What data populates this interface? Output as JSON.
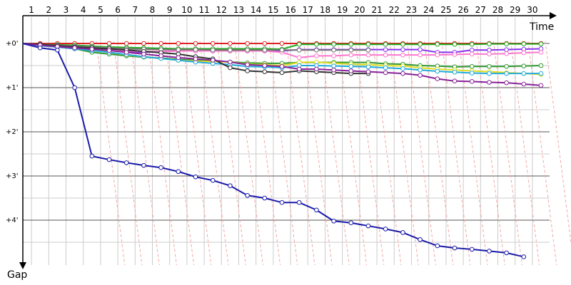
{
  "chart_data": {
    "type": "line",
    "xlabel": "Time",
    "ylabel": "Gap",
    "x_ticks": [
      "1",
      "2",
      "3",
      "4",
      "5",
      "6",
      "7",
      "8",
      "9",
      "10",
      "11",
      "12",
      "13",
      "14",
      "15",
      "16",
      "17",
      "18",
      "19",
      "20",
      "21",
      "22",
      "23",
      "24",
      "25",
      "26",
      "27",
      "28",
      "29",
      "30"
    ],
    "y_ticks": [
      "+0'",
      "+1'",
      "+2'",
      "+3'",
      "+4'"
    ],
    "xlim": [
      0,
      31.5
    ],
    "ylim": [
      -0.3,
      5.3
    ],
    "grid": true,
    "y_inverted": true,
    "colors": {
      "grid": "#cccccc",
      "axis": "#000000",
      "lap_guides": "#f4a6a6"
    },
    "series": [
      {
        "color": "#dd2222",
        "values": [
          [
            0,
            0
          ],
          [
            1,
            0
          ],
          [
            2,
            0
          ],
          [
            3,
            0
          ],
          [
            4,
            0
          ],
          [
            5,
            0
          ],
          [
            6,
            0
          ],
          [
            7,
            0
          ],
          [
            8,
            0
          ],
          [
            9,
            0
          ],
          [
            10,
            0
          ],
          [
            11,
            0
          ],
          [
            12,
            0
          ],
          [
            13,
            0
          ],
          [
            14,
            0
          ],
          [
            15,
            0
          ],
          [
            16,
            0
          ],
          [
            17,
            0
          ],
          [
            18,
            0
          ],
          [
            19,
            0
          ],
          [
            20,
            0
          ],
          [
            21,
            0
          ],
          [
            22,
            0
          ],
          [
            23,
            0
          ],
          [
            24,
            0
          ],
          [
            25,
            0
          ],
          [
            26,
            0
          ],
          [
            27,
            0
          ],
          [
            28,
            0
          ],
          [
            29,
            0
          ],
          [
            30,
            0
          ]
        ]
      },
      {
        "color": "#22aa22",
        "values": [
          [
            0,
            0
          ],
          [
            1,
            0.02
          ],
          [
            2,
            0.03
          ],
          [
            3,
            0.04
          ],
          [
            4,
            0.06
          ],
          [
            5,
            0.08
          ],
          [
            6,
            0.09
          ],
          [
            7,
            0.1
          ],
          [
            8,
            0.11
          ],
          [
            9,
            0.12
          ],
          [
            10,
            0.12
          ],
          [
            11,
            0.12
          ],
          [
            12,
            0.12
          ],
          [
            13,
            0.12
          ],
          [
            14,
            0.12
          ],
          [
            15,
            0.13
          ],
          [
            16,
            0.02
          ],
          [
            17,
            0.02
          ],
          [
            18,
            0.02
          ],
          [
            19,
            0.02
          ],
          [
            20,
            0.02
          ],
          [
            21,
            0.02
          ],
          [
            22,
            0.02
          ],
          [
            23,
            0.02
          ],
          [
            24,
            0.02
          ],
          [
            25,
            0.02
          ],
          [
            26,
            0.02
          ],
          [
            27,
            0.01
          ],
          [
            28,
            0.01
          ],
          [
            29,
            0.01
          ],
          [
            30,
            0.01
          ]
        ]
      },
      {
        "color": "#8833ee",
        "values": [
          [
            0,
            0
          ],
          [
            1,
            0.05
          ],
          [
            2,
            0.08
          ],
          [
            3,
            0.12
          ],
          [
            4,
            0.14
          ],
          [
            5,
            0.16
          ],
          [
            6,
            0.18
          ],
          [
            7,
            0.2
          ],
          [
            8,
            0.18
          ],
          [
            9,
            0.17
          ],
          [
            10,
            0.17
          ],
          [
            11,
            0.17
          ],
          [
            12,
            0.17
          ],
          [
            13,
            0.17
          ],
          [
            14,
            0.17
          ],
          [
            15,
            0.17
          ],
          [
            16,
            0.14
          ],
          [
            17,
            0.14
          ],
          [
            18,
            0.14
          ],
          [
            19,
            0.14
          ],
          [
            20,
            0.14
          ],
          [
            21,
            0.14
          ],
          [
            22,
            0.14
          ],
          [
            23,
            0.14
          ],
          [
            24,
            0.2
          ],
          [
            25,
            0.2
          ],
          [
            26,
            0.15
          ],
          [
            27,
            0.15
          ],
          [
            28,
            0.14
          ],
          [
            29,
            0.13
          ],
          [
            30,
            0.12
          ]
        ]
      },
      {
        "color": "#ff77cc",
        "values": [
          [
            0,
            0
          ],
          [
            1,
            0.05
          ],
          [
            2,
            0.08
          ],
          [
            3,
            0.1
          ],
          [
            4,
            0.12
          ],
          [
            5,
            0.15
          ],
          [
            6,
            0.17
          ],
          [
            7,
            0.18
          ],
          [
            8,
            0.18
          ],
          [
            9,
            0.17
          ],
          [
            10,
            0.17
          ],
          [
            11,
            0.17
          ],
          [
            12,
            0.17
          ],
          [
            13,
            0.17
          ],
          [
            14,
            0.17
          ],
          [
            15,
            0.2
          ],
          [
            16,
            0.32
          ],
          [
            17,
            0.28
          ],
          [
            18,
            0.28
          ],
          [
            19,
            0.26
          ],
          [
            20,
            0.26
          ],
          [
            21,
            0.26
          ],
          [
            22,
            0.26
          ],
          [
            23,
            0.26
          ],
          [
            24,
            0.26
          ],
          [
            25,
            0.25
          ],
          [
            26,
            0.24
          ],
          [
            27,
            0.24
          ],
          [
            28,
            0.23
          ],
          [
            29,
            0.21
          ],
          [
            30,
            0.2
          ]
        ]
      },
      {
        "color": "#777777",
        "values": [
          [
            0,
            0
          ],
          [
            1,
            0.02
          ],
          [
            2,
            0.04
          ],
          [
            3,
            0.06
          ],
          [
            4,
            0.08
          ],
          [
            5,
            0.1
          ],
          [
            6,
            0.12
          ],
          [
            7,
            0.13
          ],
          [
            8,
            0.14
          ],
          [
            9,
            0.14
          ],
          [
            10,
            0.14
          ],
          [
            11,
            0.15
          ],
          [
            12,
            0.15
          ],
          [
            13,
            0.15
          ],
          [
            14,
            0.15
          ],
          [
            15,
            0.15
          ],
          [
            16,
            0.15
          ],
          [
            17,
            0.15
          ],
          [
            18,
            0.15
          ],
          [
            19,
            0.15
          ],
          [
            20,
            0.15
          ]
        ]
      },
      {
        "color": "#339933",
        "values": [
          [
            0,
            0
          ],
          [
            1,
            0.05
          ],
          [
            2,
            0.08
          ],
          [
            3,
            0.12
          ],
          [
            4,
            0.2
          ],
          [
            5,
            0.24
          ],
          [
            6,
            0.28
          ],
          [
            7,
            0.31
          ],
          [
            8,
            0.33
          ],
          [
            9,
            0.36
          ],
          [
            10,
            0.38
          ],
          [
            11,
            0.4
          ],
          [
            12,
            0.42
          ],
          [
            13,
            0.44
          ],
          [
            14,
            0.45
          ],
          [
            15,
            0.45
          ],
          [
            16,
            0.43
          ],
          [
            17,
            0.43
          ],
          [
            18,
            0.43
          ],
          [
            19,
            0.43
          ],
          [
            20,
            0.43
          ],
          [
            21,
            0.46
          ],
          [
            22,
            0.47
          ],
          [
            23,
            0.5
          ],
          [
            24,
            0.51
          ],
          [
            25,
            0.53
          ],
          [
            26,
            0.52
          ],
          [
            27,
            0.52
          ],
          [
            28,
            0.52
          ],
          [
            29,
            0.51
          ],
          [
            30,
            0.5
          ]
        ]
      },
      {
        "color": "#dddd22",
        "values": [
          [
            0,
            0
          ],
          [
            1,
            0.04
          ],
          [
            2,
            0.07
          ],
          [
            3,
            0.1
          ],
          [
            4,
            0.14
          ],
          [
            5,
            0.2
          ],
          [
            6,
            0.26
          ],
          [
            7,
            0.3
          ],
          [
            8,
            0.34
          ],
          [
            9,
            0.38
          ],
          [
            10,
            0.4
          ],
          [
            11,
            0.41
          ],
          [
            12,
            0.42
          ],
          [
            13,
            0.47
          ],
          [
            14,
            0.48
          ],
          [
            15,
            0.5
          ],
          [
            16,
            0.43
          ],
          [
            17,
            0.42
          ],
          [
            18,
            0.45
          ],
          [
            19,
            0.47
          ],
          [
            20,
            0.48
          ],
          [
            21,
            0.5
          ],
          [
            22,
            0.51
          ],
          [
            23,
            0.55
          ],
          [
            24,
            0.58
          ],
          [
            25,
            0.6
          ],
          [
            26,
            0.62
          ],
          [
            27,
            0.64
          ],
          [
            28,
            0.66
          ],
          [
            29,
            0.68
          ],
          [
            30,
            0.7
          ]
        ]
      },
      {
        "color": "#22aadd",
        "values": [
          [
            0,
            0
          ],
          [
            1,
            0.05
          ],
          [
            2,
            0.08
          ],
          [
            3,
            0.12
          ],
          [
            4,
            0.16
          ],
          [
            5,
            0.2
          ],
          [
            6,
            0.25
          ],
          [
            7,
            0.3
          ],
          [
            8,
            0.34
          ],
          [
            9,
            0.38
          ],
          [
            10,
            0.42
          ],
          [
            11,
            0.45
          ],
          [
            12,
            0.48
          ],
          [
            13,
            0.52
          ],
          [
            14,
            0.53
          ],
          [
            15,
            0.55
          ],
          [
            16,
            0.5
          ],
          [
            17,
            0.5
          ],
          [
            18,
            0.51
          ],
          [
            19,
            0.52
          ],
          [
            20,
            0.53
          ],
          [
            21,
            0.55
          ],
          [
            22,
            0.57
          ],
          [
            23,
            0.6
          ],
          [
            24,
            0.63
          ],
          [
            25,
            0.65
          ],
          [
            26,
            0.67
          ],
          [
            27,
            0.68
          ],
          [
            28,
            0.68
          ],
          [
            29,
            0.68
          ],
          [
            30,
            0.68
          ]
        ]
      },
      {
        "color": "#333333",
        "values": [
          [
            0,
            0
          ],
          [
            1,
            0.02
          ],
          [
            2,
            0.05
          ],
          [
            3,
            0.08
          ],
          [
            4,
            0.1
          ],
          [
            5,
            0.12
          ],
          [
            6,
            0.15
          ],
          [
            7,
            0.18
          ],
          [
            8,
            0.21
          ],
          [
            9,
            0.24
          ],
          [
            10,
            0.3
          ],
          [
            11,
            0.35
          ],
          [
            12,
            0.55
          ],
          [
            13,
            0.62
          ],
          [
            14,
            0.64
          ],
          [
            15,
            0.66
          ],
          [
            16,
            0.62
          ],
          [
            17,
            0.64
          ],
          [
            18,
            0.66
          ],
          [
            19,
            0.68
          ],
          [
            20,
            0.68
          ]
        ]
      },
      {
        "color": "#882299",
        "values": [
          [
            0,
            0
          ],
          [
            1,
            0.04
          ],
          [
            2,
            0.07
          ],
          [
            3,
            0.1
          ],
          [
            4,
            0.13
          ],
          [
            5,
            0.16
          ],
          [
            6,
            0.2
          ],
          [
            7,
            0.24
          ],
          [
            8,
            0.28
          ],
          [
            9,
            0.32
          ],
          [
            10,
            0.35
          ],
          [
            11,
            0.38
          ],
          [
            12,
            0.42
          ],
          [
            13,
            0.48
          ],
          [
            14,
            0.5
          ],
          [
            15,
            0.52
          ],
          [
            16,
            0.58
          ],
          [
            17,
            0.58
          ],
          [
            18,
            0.6
          ],
          [
            19,
            0.62
          ],
          [
            20,
            0.64
          ],
          [
            21,
            0.66
          ],
          [
            22,
            0.68
          ],
          [
            23,
            0.72
          ],
          [
            24,
            0.8
          ],
          [
            25,
            0.85
          ],
          [
            26,
            0.86
          ],
          [
            27,
            0.88
          ],
          [
            28,
            0.89
          ],
          [
            29,
            0.92
          ],
          [
            30,
            0.95
          ]
        ]
      },
      {
        "color": "#1a1aaa",
        "values": [
          [
            0,
            0
          ],
          [
            1,
            0.1
          ],
          [
            2,
            0.15
          ],
          [
            3,
            1.0
          ],
          [
            4,
            2.55
          ],
          [
            5,
            2.63
          ],
          [
            6,
            2.7
          ],
          [
            7,
            2.76
          ],
          [
            8,
            2.81
          ],
          [
            9,
            2.9
          ],
          [
            10,
            3.02
          ],
          [
            11,
            3.1
          ],
          [
            12,
            3.22
          ],
          [
            13,
            3.44
          ],
          [
            14,
            3.5
          ],
          [
            15,
            3.6
          ],
          [
            16,
            3.6
          ],
          [
            17,
            3.77
          ],
          [
            18,
            4.02
          ],
          [
            19,
            4.06
          ],
          [
            20,
            4.13
          ],
          [
            21,
            4.2
          ],
          [
            22,
            4.28
          ],
          [
            23,
            4.44
          ],
          [
            24,
            4.58
          ],
          [
            25,
            4.63
          ],
          [
            26,
            4.66
          ],
          [
            27,
            4.7
          ],
          [
            28,
            4.74
          ],
          [
            29,
            4.83
          ]
        ]
      }
    ]
  }
}
